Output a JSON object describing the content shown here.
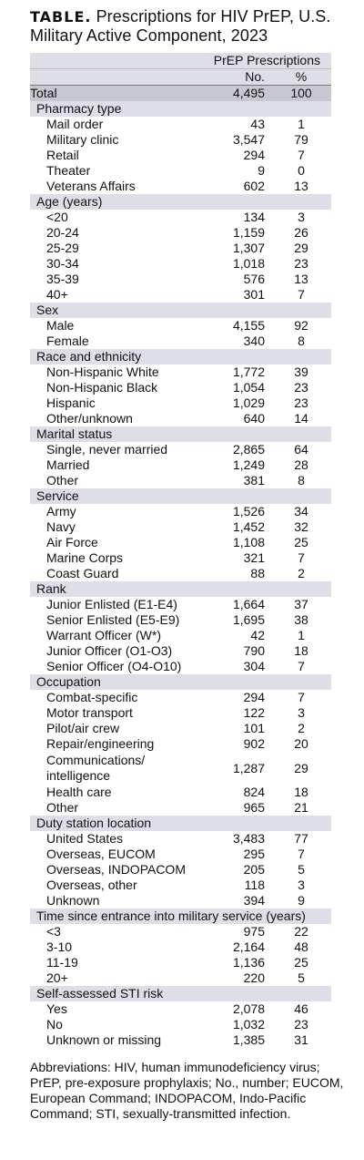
{
  "title": {
    "label": "TABLE.",
    "text": "Prescriptions for HIV PrEP, U.S. Military Active Component, 2023"
  },
  "header": {
    "group": "PrEP Prescriptions",
    "col_no": "No.",
    "col_pct": "%"
  },
  "total": {
    "label": "Total",
    "no": "4,495",
    "pct": "100"
  },
  "sections": [
    {
      "name": "Pharmacy type",
      "rows": [
        {
          "label": "Mail order",
          "no": "43",
          "pct": "1"
        },
        {
          "label": "Military clinic",
          "no": "3,547",
          "pct": "79"
        },
        {
          "label": "Retail",
          "no": "294",
          "pct": "7"
        },
        {
          "label": "Theater",
          "no": "9",
          "pct": "0"
        },
        {
          "label": "Veterans Affairs",
          "no": "602",
          "pct": "13"
        }
      ]
    },
    {
      "name": "Age (years)",
      "rows": [
        {
          "label": "<20",
          "no": "134",
          "pct": "3"
        },
        {
          "label": "20-24",
          "no": "1,159",
          "pct": "26"
        },
        {
          "label": "25-29",
          "no": "1,307",
          "pct": "29"
        },
        {
          "label": "30-34",
          "no": "1,018",
          "pct": "23"
        },
        {
          "label": "35-39",
          "no": "576",
          "pct": "13"
        },
        {
          "label": "40+",
          "no": "301",
          "pct": "7"
        }
      ]
    },
    {
      "name": "Sex",
      "rows": [
        {
          "label": "Male",
          "no": "4,155",
          "pct": "92"
        },
        {
          "label": "Female",
          "no": "340",
          "pct": "8"
        }
      ]
    },
    {
      "name": "Race and ethnicity",
      "rows": [
        {
          "label": "Non-Hispanic White",
          "no": "1,772",
          "pct": "39"
        },
        {
          "label": "Non-Hispanic Black",
          "no": "1,054",
          "pct": "23"
        },
        {
          "label": "Hispanic",
          "no": "1,029",
          "pct": "23"
        },
        {
          "label": "Other/unknown",
          "no": "640",
          "pct": "14"
        }
      ]
    },
    {
      "name": "Marital status",
      "rows": [
        {
          "label": "Single, never married",
          "no": "2,865",
          "pct": "64"
        },
        {
          "label": "Married",
          "no": "1,249",
          "pct": "28"
        },
        {
          "label": "Other",
          "no": "381",
          "pct": "8"
        }
      ]
    },
    {
      "name": "Service",
      "rows": [
        {
          "label": "Army",
          "no": "1,526",
          "pct": "34"
        },
        {
          "label": "Navy",
          "no": "1,452",
          "pct": "32"
        },
        {
          "label": "Air Force",
          "no": "1,108",
          "pct": "25"
        },
        {
          "label": "Marine Corps",
          "no": "321",
          "pct": "7"
        },
        {
          "label": "Coast Guard",
          "no": "88",
          "pct": "2"
        }
      ]
    },
    {
      "name": "Rank",
      "rows": [
        {
          "label": "Junior Enlisted (E1-E4)",
          "no": "1,664",
          "pct": "37"
        },
        {
          "label": "Senior Enlisted (E5-E9)",
          "no": "1,695",
          "pct": "38"
        },
        {
          "label": "Warrant Officer (W*)",
          "no": "42",
          "pct": "1"
        },
        {
          "label": "Junior Officer (O1-O3)",
          "no": "790",
          "pct": "18"
        },
        {
          "label": "Senior Officer (O4-O10)",
          "no": "304",
          "pct": "7"
        }
      ]
    },
    {
      "name": "Occupation",
      "rows": [
        {
          "label": "Combat-specific",
          "no": "294",
          "pct": "7"
        },
        {
          "label": "Motor transport",
          "no": "122",
          "pct": "3"
        },
        {
          "label": "Pilot/air crew",
          "no": "101",
          "pct": "2"
        },
        {
          "label": "Repair/engineering",
          "no": "902",
          "pct": "20"
        },
        {
          "label": "Communications/ intelligence",
          "no": "1,287",
          "pct": "29",
          "tall": true
        },
        {
          "label": "Health care",
          "no": "824",
          "pct": "18"
        },
        {
          "label": "Other",
          "no": "965",
          "pct": "21"
        }
      ]
    },
    {
      "name": "Duty station location",
      "rows": [
        {
          "label": "United States",
          "no": "3,483",
          "pct": "77"
        },
        {
          "label": "Overseas, EUCOM",
          "no": "295",
          "pct": "7"
        },
        {
          "label": "Overseas, INDOPACOM",
          "no": "205",
          "pct": "5"
        },
        {
          "label": "Overseas, other",
          "no": "118",
          "pct": "3"
        },
        {
          "label": "Unknown",
          "no": "394",
          "pct": "9"
        }
      ]
    },
    {
      "name": "Time since entrance into military service (years)",
      "rows": [
        {
          "label": "<3",
          "no": "975",
          "pct": "22"
        },
        {
          "label": "3-10",
          "no": "2,164",
          "pct": "48"
        },
        {
          "label": "11-19",
          "no": "1,136",
          "pct": "25"
        },
        {
          "label": "20+",
          "no": "220",
          "pct": "5"
        }
      ]
    },
    {
      "name": "Self-assessed STI risk",
      "rows": [
        {
          "label": "Yes",
          "no": "2,078",
          "pct": "46"
        },
        {
          "label": "No",
          "no": "1,032",
          "pct": "23"
        },
        {
          "label": "Unknown or missing",
          "no": "1,385",
          "pct": "31"
        }
      ]
    }
  ],
  "footnote": "Abbreviations: HIV, human immunodeficiency virus; PrEP, pre-exposure prophylaxis; No., number; EUCOM, European Command; INDOPACOM, Indo-Pacific Command; STI, sexually-transmitted infection."
}
